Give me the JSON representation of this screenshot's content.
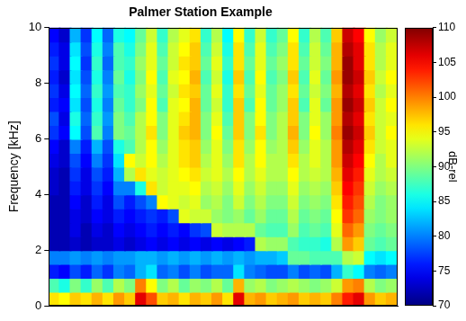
{
  "chart_data": {
    "type": "heatmap",
    "title": "Palmer Station Example",
    "y_label": "Frequency [kHz]",
    "ylim": [
      0,
      10
    ],
    "yticks": [
      0,
      2,
      4,
      6,
      8,
      10
    ],
    "grid": false,
    "tick_labels": "y",
    "y_bins": [
      10,
      9.5,
      9,
      8.5,
      8,
      7.5,
      7,
      6.5,
      6,
      5.5,
      5,
      4.5,
      4,
      3.5,
      3,
      2.5,
      2,
      1.5,
      1,
      0.5,
      0
    ],
    "z": [
      [
        75,
        73,
        82,
        77,
        85,
        79,
        86,
        85,
        89,
        93,
        87,
        92,
        94,
        96,
        87,
        92,
        85,
        95,
        87,
        93,
        87,
        89,
        95,
        87,
        92,
        88,
        97,
        107,
        105,
        95,
        91,
        93
      ],
      [
        76,
        74,
        84,
        78,
        86,
        80,
        88,
        86,
        90,
        94,
        88,
        93,
        95,
        97,
        88,
        93,
        86,
        96,
        88,
        94,
        88,
        90,
        96,
        88,
        93,
        89,
        98,
        108,
        106,
        96,
        92,
        94
      ],
      [
        77,
        74,
        85,
        77,
        87,
        79,
        88,
        87,
        91,
        94,
        89,
        93,
        96,
        97,
        89,
        94,
        87,
        96,
        89,
        94,
        89,
        91,
        96,
        89,
        93,
        90,
        98,
        109,
        106,
        96,
        92,
        94
      ],
      [
        76,
        73,
        84,
        78,
        86,
        80,
        89,
        86,
        90,
        95,
        88,
        94,
        95,
        98,
        88,
        93,
        86,
        97,
        88,
        95,
        88,
        90,
        97,
        88,
        94,
        89,
        99,
        109,
        107,
        97,
        93,
        95
      ],
      [
        77,
        74,
        85,
        79,
        87,
        81,
        88,
        87,
        91,
        94,
        89,
        93,
        96,
        97,
        89,
        94,
        87,
        96,
        89,
        94,
        89,
        91,
        96,
        89,
        93,
        90,
        98,
        108,
        106,
        96,
        92,
        94
      ],
      [
        76,
        75,
        84,
        78,
        86,
        80,
        89,
        87,
        90,
        95,
        88,
        94,
        95,
        98,
        89,
        93,
        87,
        97,
        88,
        95,
        89,
        91,
        97,
        88,
        94,
        89,
        99,
        109,
        107,
        97,
        93,
        95
      ],
      [
        78,
        74,
        86,
        79,
        87,
        81,
        90,
        88,
        92,
        95,
        90,
        94,
        96,
        98,
        90,
        94,
        88,
        97,
        90,
        95,
        90,
        92,
        97,
        90,
        94,
        91,
        99,
        108,
        106,
        96,
        93,
        94
      ],
      [
        77,
        75,
        85,
        78,
        88,
        80,
        90,
        89,
        92,
        96,
        90,
        94,
        97,
        98,
        90,
        95,
        89,
        97,
        90,
        96,
        90,
        92,
        98,
        90,
        95,
        91,
        100,
        109,
        107,
        97,
        93,
        95
      ],
      [
        75,
        73,
        80,
        76,
        82,
        78,
        86,
        88,
        92,
        95,
        91,
        94,
        96,
        97,
        91,
        94,
        90,
        96,
        91,
        95,
        91,
        92,
        97,
        91,
        94,
        92,
        99,
        108,
        106,
        96,
        93,
        94
      ],
      [
        74,
        73,
        78,
        75,
        80,
        77,
        84,
        95,
        93,
        95,
        92,
        94,
        96,
        97,
        92,
        94,
        91,
        96,
        92,
        95,
        92,
        92,
        96,
        92,
        94,
        92,
        99,
        107,
        105,
        95,
        92,
        94
      ],
      [
        73,
        72,
        77,
        74,
        78,
        76,
        82,
        92,
        96,
        94,
        93,
        94,
        95,
        96,
        93,
        94,
        92,
        95,
        92,
        94,
        92,
        92,
        95,
        92,
        93,
        92,
        98,
        106,
        104,
        94,
        92,
        93
      ],
      [
        73,
        72,
        76,
        74,
        77,
        75,
        80,
        80,
        86,
        96,
        93,
        94,
        94,
        95,
        92,
        93,
        91,
        94,
        91,
        93,
        91,
        91,
        94,
        91,
        92,
        91,
        97,
        105,
        103,
        93,
        91,
        92
      ],
      [
        72,
        72,
        75,
        73,
        76,
        74,
        78,
        76,
        78,
        80,
        95,
        94,
        93,
        94,
        91,
        92,
        90,
        93,
        90,
        92,
        90,
        90,
        93,
        90,
        91,
        90,
        96,
        104,
        102,
        92,
        90,
        91
      ],
      [
        72,
        72,
        74,
        73,
        75,
        74,
        76,
        75,
        76,
        77,
        76,
        78,
        94,
        93,
        93,
        91,
        90,
        91,
        89,
        91,
        89,
        89,
        92,
        89,
        90,
        89,
        95,
        103,
        101,
        91,
        90,
        91
      ],
      [
        72,
        72,
        74,
        72,
        74,
        73,
        75,
        74,
        75,
        76,
        75,
        76,
        75,
        77,
        78,
        93,
        92,
        92,
        92,
        89,
        88,
        88,
        91,
        88,
        89,
        88,
        94,
        101,
        99,
        90,
        89,
        90
      ],
      [
        72,
        72,
        73,
        72,
        73,
        73,
        74,
        73,
        74,
        75,
        74,
        75,
        74,
        75,
        74,
        75,
        74,
        75,
        76,
        92,
        91,
        91,
        88,
        87,
        87,
        86,
        92,
        99,
        97,
        89,
        88,
        89
      ],
      [
        80,
        80,
        81,
        80,
        81,
        80,
        81,
        81,
        82,
        82,
        81,
        82,
        81,
        82,
        81,
        82,
        81,
        82,
        81,
        82,
        82,
        83,
        89,
        89,
        88,
        88,
        88,
        92,
        93,
        85,
        84,
        85
      ],
      [
        76,
        75,
        78,
        76,
        79,
        77,
        80,
        79,
        82,
        84,
        79,
        80,
        78,
        80,
        78,
        79,
        79,
        84,
        80,
        79,
        78,
        78,
        80,
        78,
        79,
        78,
        82,
        87,
        85,
        80,
        79,
        80
      ],
      [
        88,
        86,
        90,
        87,
        91,
        88,
        92,
        90,
        100,
        95,
        90,
        92,
        89,
        91,
        90,
        92,
        89,
        98,
        91,
        92,
        90,
        91,
        92,
        91,
        90,
        91,
        93,
        99,
        100,
        92,
        90,
        91
      ],
      [
        96,
        95,
        97,
        96,
        98,
        96,
        99,
        97,
        106,
        102,
        97,
        98,
        96,
        98,
        97,
        99,
        96,
        106,
        98,
        99,
        97,
        98,
        99,
        97,
        98,
        97,
        100,
        104,
        106,
        99,
        97,
        98
      ]
    ],
    "clim": [
      70,
      110
    ],
    "cticks": [
      70,
      75,
      80,
      85,
      90,
      95,
      100,
      105,
      110
    ],
    "colorbar_label": "dB-rel"
  }
}
